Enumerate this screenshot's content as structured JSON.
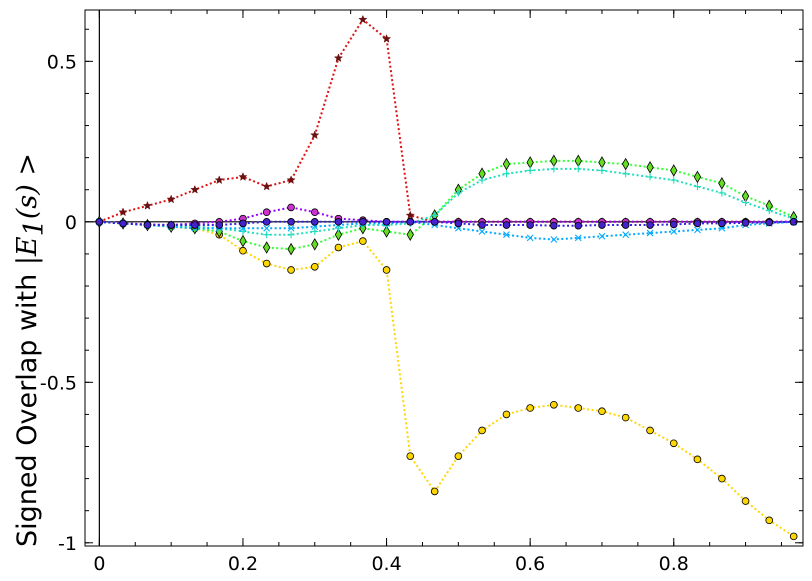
{
  "chart_data": {
    "type": "line",
    "title": "",
    "xlabel": "",
    "ylabel": "Signed Overlap with |E_1(s) >",
    "ylabel_parts": {
      "prefix": "Signed Overlap with ",
      "math": "|E",
      "subscript": "1",
      "suffix": "(s) >"
    },
    "xlim": [
      -0.02,
      0.98
    ],
    "ylim": [
      -1.01,
      0.66
    ],
    "x_ticks": [
      0,
      0.2,
      0.4,
      0.6,
      0.8
    ],
    "x_tick_labels": [
      "0",
      "0.2",
      "0.4",
      "0.6",
      "0.8"
    ],
    "y_ticks": [
      -1,
      -0.5,
      0,
      0.5
    ],
    "y_tick_labels": [
      "-1",
      "-0.5",
      "0",
      "0.5"
    ],
    "zero_lines": true,
    "grid": false,
    "legend": "none",
    "x": [
      0,
      0.033,
      0.067,
      0.1,
      0.133,
      0.167,
      0.2,
      0.233,
      0.267,
      0.3,
      0.333,
      0.367,
      0.4,
      0.433,
      0.467,
      0.5,
      0.533,
      0.567,
      0.6,
      0.633,
      0.667,
      0.7,
      0.733,
      0.767,
      0.8,
      0.833,
      0.867,
      0.9,
      0.933,
      0.967
    ],
    "series": [
      {
        "line_color": "#dd1111",
        "marker": "star",
        "marker_color": "#6b1010",
        "values": [
          0.0,
          0.03,
          0.05,
          0.07,
          0.1,
          0.13,
          0.14,
          0.11,
          0.13,
          0.27,
          0.51,
          0.63,
          0.57,
          0.02,
          0.0,
          0.0,
          0.0,
          0.0,
          0.0,
          0.0,
          0.0,
          0.0,
          0.0,
          0.0,
          0.0,
          0.0,
          0.0,
          0.0,
          0.0,
          0.0
        ]
      },
      {
        "line_color": "#ffd700",
        "marker": "circle",
        "marker_color": "#ffd700",
        "values": [
          0.0,
          -0.005,
          -0.01,
          -0.015,
          -0.02,
          -0.04,
          -0.09,
          -0.13,
          -0.15,
          -0.14,
          -0.08,
          -0.06,
          -0.15,
          -0.73,
          -0.84,
          -0.73,
          -0.65,
          -0.6,
          -0.58,
          -0.57,
          -0.58,
          -0.59,
          -0.61,
          -0.65,
          -0.69,
          -0.74,
          -0.8,
          -0.87,
          -0.93,
          -0.98
        ]
      },
      {
        "line_color": "#33ff33",
        "marker": "diamond",
        "marker_color": "#66dd22",
        "values": [
          0.0,
          -0.005,
          -0.01,
          -0.015,
          -0.02,
          -0.03,
          -0.06,
          -0.08,
          -0.085,
          -0.07,
          -0.04,
          -0.02,
          -0.03,
          -0.04,
          0.02,
          0.1,
          0.15,
          0.18,
          0.185,
          0.19,
          0.19,
          0.185,
          0.18,
          0.17,
          0.16,
          0.14,
          0.12,
          0.08,
          0.05,
          0.015
        ]
      },
      {
        "line_color": "#22ddbb",
        "marker": "plus",
        "marker_color": "#22ddbb",
        "values": [
          0.0,
          -0.005,
          -0.01,
          -0.012,
          -0.015,
          -0.02,
          -0.03,
          -0.04,
          -0.04,
          -0.03,
          -0.02,
          -0.01,
          -0.01,
          -0.005,
          0.02,
          0.09,
          0.13,
          0.15,
          0.16,
          0.165,
          0.165,
          0.16,
          0.15,
          0.14,
          0.13,
          0.11,
          0.09,
          0.06,
          0.035,
          0.01
        ]
      },
      {
        "line_color": "#00aaff",
        "marker": "x",
        "marker_color": "#00aaff",
        "values": [
          0.0,
          -0.005,
          -0.01,
          -0.015,
          -0.02,
          -0.02,
          -0.02,
          -0.02,
          -0.02,
          -0.015,
          -0.01,
          -0.005,
          -0.005,
          0.0,
          -0.01,
          -0.02,
          -0.03,
          -0.04,
          -0.05,
          -0.055,
          -0.05,
          -0.045,
          -0.04,
          -0.035,
          -0.03,
          -0.025,
          -0.02,
          -0.01,
          -0.005,
          0.0
        ]
      },
      {
        "line_color": "#9900ff",
        "marker": "circle",
        "marker_color": "#cc33cc",
        "values": [
          0.0,
          -0.005,
          -0.008,
          -0.01,
          -0.005,
          0.0,
          0.01,
          0.03,
          0.045,
          0.03,
          0.01,
          0.005,
          0.0,
          0.0,
          0.0,
          0.0,
          0.0,
          0.0,
          0.0,
          0.0,
          0.0,
          0.0,
          0.0,
          0.0,
          0.0,
          0.0,
          0.0,
          0.0,
          0.0,
          0.0
        ]
      },
      {
        "line_color": "#3322dd",
        "marker": "circle",
        "marker_color": "#4422cc",
        "values": [
          0.0,
          -0.005,
          -0.01,
          -0.01,
          -0.01,
          -0.01,
          -0.005,
          0.0,
          0.0,
          0.0,
          0.0,
          0.0,
          0.0,
          0.0,
          0.0,
          -0.005,
          -0.01,
          -0.01,
          -0.01,
          -0.012,
          -0.012,
          -0.01,
          -0.01,
          -0.01,
          -0.008,
          -0.005,
          -0.005,
          -0.003,
          -0.002,
          0.0
        ]
      }
    ]
  }
}
